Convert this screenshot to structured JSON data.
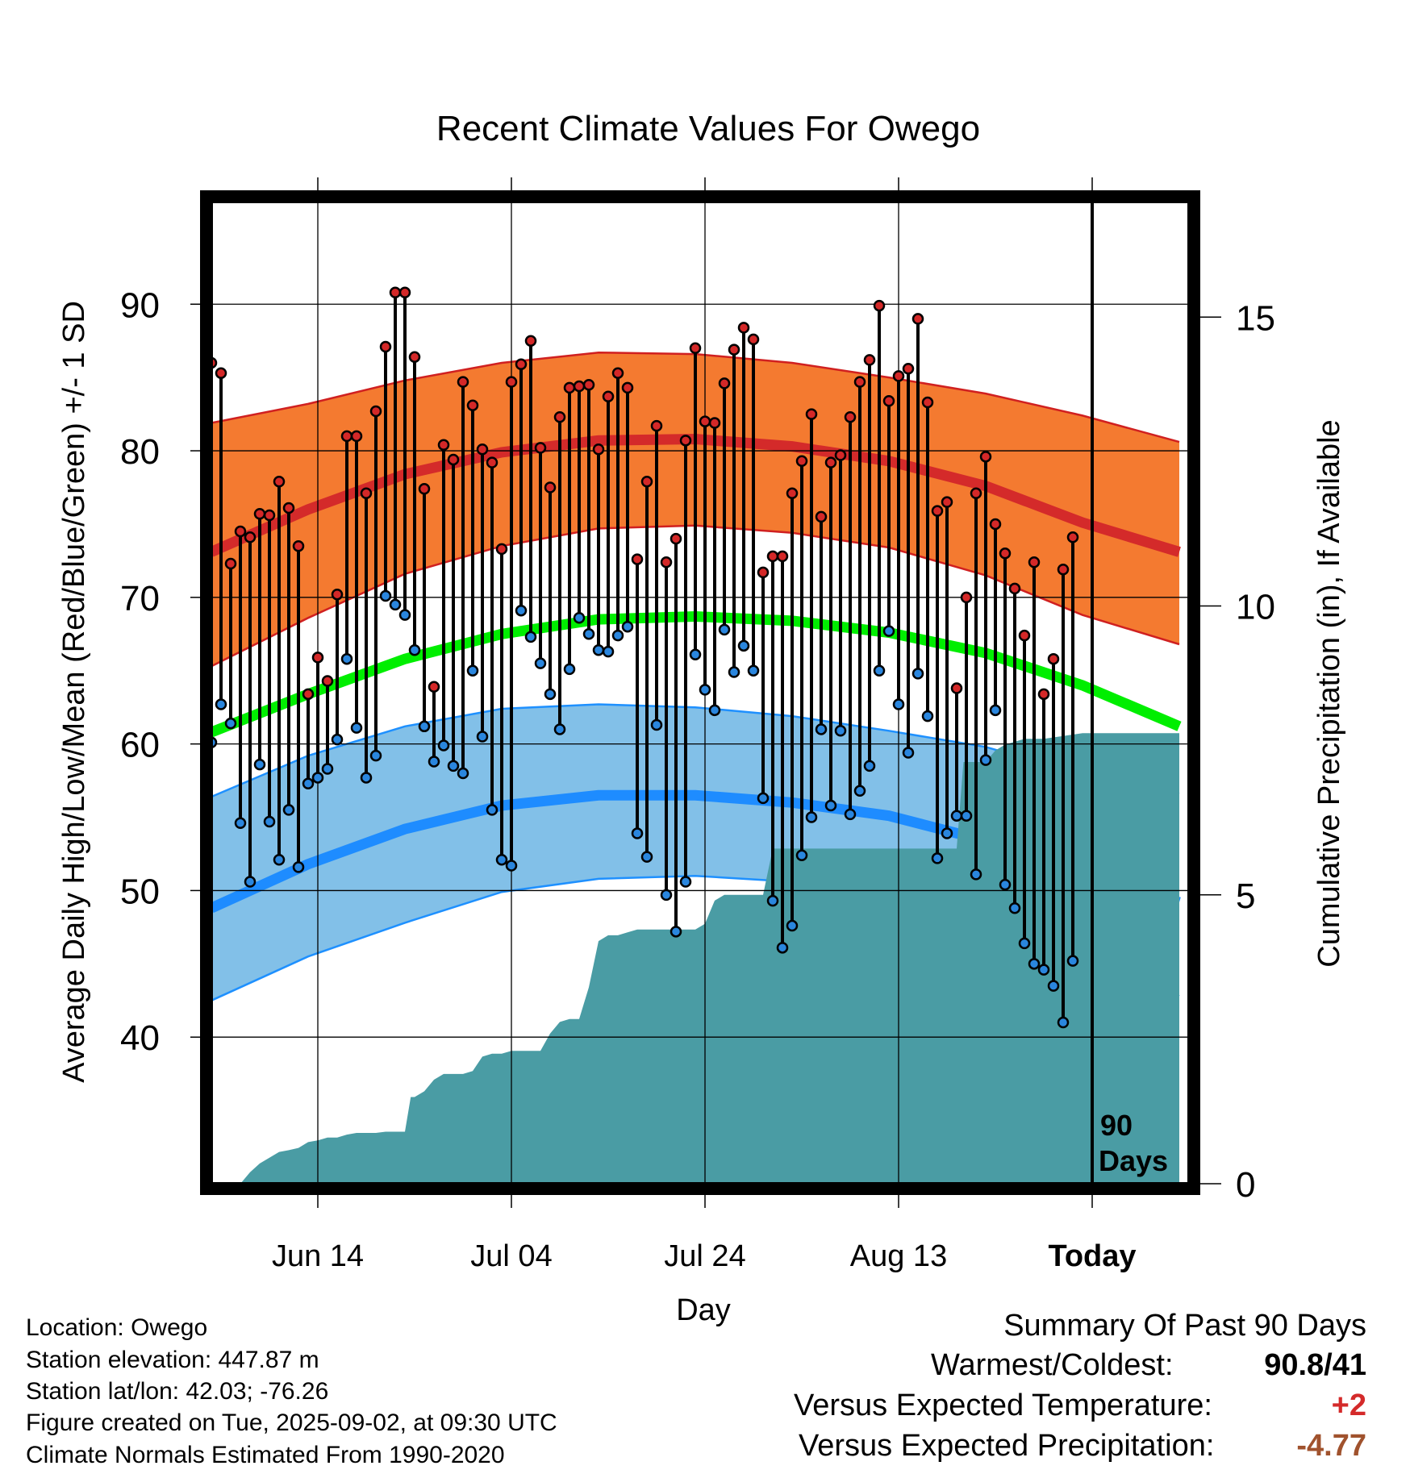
{
  "chart_data": {
    "type": "line",
    "title": "Recent Climate Values For Owego",
    "xlabel": "Day",
    "ylabel": "Average Daily High/Low/Mean (Red/Blue/Green) +/- 1 SD",
    "y2label": "Cumulative Precipitation (in), If Available",
    "x_start_date": "2025-06-03",
    "x_range": [
      "2025-06-03",
      "2025-09-12"
    ],
    "ylim": [
      30,
      97
    ],
    "y_ticks": [
      40,
      50,
      60,
      70,
      80,
      90
    ],
    "y2lim": [
      0,
      17
    ],
    "y2_ticks": [
      0,
      5,
      10,
      15
    ],
    "x_ticks": [
      {
        "date": "2025-06-14",
        "label": "Jun 14"
      },
      {
        "date": "2025-07-04",
        "label": "Jul 04"
      },
      {
        "date": "2025-07-24",
        "label": "Jul 24"
      },
      {
        "date": "2025-08-13",
        "label": "Aug 13"
      },
      {
        "date": "2025-09-02",
        "label": "Today"
      }
    ],
    "grid": true,
    "today_marker": {
      "date": "2025-09-02",
      "label_line1": "90",
      "label_line2": "Days"
    },
    "colors": {
      "high_band": "#f47a30",
      "high_band_edge": "#d02020",
      "high_mean": "#d42a2a",
      "low_band": "#82c0e8",
      "low_band_edge": "#1e90ff",
      "low_mean": "#1e8cff",
      "mean_line": "#00ee00",
      "precip": "#4a9ca4",
      "high_point": "#d42828",
      "low_point": "#2a86de"
    },
    "normals": {
      "high_mean": [
        [
          0,
          73.1
        ],
        [
          10,
          76.0
        ],
        [
          20,
          78.4
        ],
        [
          30,
          79.9
        ],
        [
          40,
          80.7
        ],
        [
          50,
          80.8
        ],
        [
          60,
          80.3
        ],
        [
          70,
          79.3
        ],
        [
          80,
          77.6
        ],
        [
          90,
          75.1
        ],
        [
          100,
          73.1
        ]
      ],
      "high_upper": [
        [
          0,
          81.9
        ],
        [
          10,
          83.2
        ],
        [
          20,
          84.8
        ],
        [
          30,
          86.0
        ],
        [
          40,
          86.7
        ],
        [
          50,
          86.6
        ],
        [
          60,
          86.0
        ],
        [
          70,
          85.0
        ],
        [
          80,
          83.9
        ],
        [
          90,
          82.4
        ],
        [
          100,
          80.6
        ]
      ],
      "high_lower": [
        [
          0,
          65.3
        ],
        [
          10,
          68.6
        ],
        [
          20,
          71.6
        ],
        [
          30,
          73.5
        ],
        [
          40,
          74.7
        ],
        [
          50,
          74.9
        ],
        [
          60,
          74.4
        ],
        [
          70,
          73.4
        ],
        [
          80,
          71.5
        ],
        [
          90,
          68.8
        ],
        [
          100,
          66.8
        ]
      ],
      "mean_line": [
        [
          0,
          60.8
        ],
        [
          10,
          63.4
        ],
        [
          20,
          65.8
        ],
        [
          30,
          67.5
        ],
        [
          40,
          68.5
        ],
        [
          50,
          68.7
        ],
        [
          60,
          68.4
        ],
        [
          70,
          67.6
        ],
        [
          80,
          66.2
        ],
        [
          90,
          64.0
        ],
        [
          100,
          61.2
        ]
      ],
      "low_mean": [
        [
          0,
          48.8
        ],
        [
          10,
          51.8
        ],
        [
          20,
          54.2
        ],
        [
          30,
          55.8
        ],
        [
          40,
          56.5
        ],
        [
          50,
          56.5
        ],
        [
          60,
          56.0
        ],
        [
          70,
          55.1
        ],
        [
          80,
          53.4
        ],
        [
          90,
          51.1
        ],
        [
          100,
          49.2
        ]
      ],
      "low_upper": [
        [
          0,
          56.4
        ],
        [
          10,
          59.2
        ],
        [
          20,
          61.2
        ],
        [
          30,
          62.4
        ],
        [
          40,
          62.7
        ],
        [
          50,
          62.5
        ],
        [
          60,
          61.9
        ],
        [
          70,
          60.9
        ],
        [
          80,
          59.8
        ],
        [
          90,
          57.9
        ],
        [
          100,
          56.6
        ]
      ],
      "low_lower": [
        [
          0,
          42.5
        ],
        [
          10,
          45.5
        ],
        [
          20,
          47.8
        ],
        [
          30,
          49.9
        ],
        [
          40,
          50.8
        ],
        [
          50,
          51.0
        ],
        [
          60,
          50.6
        ],
        [
          70,
          49.8
        ],
        [
          80,
          48.3
        ],
        [
          90,
          45.5
        ],
        [
          100,
          42.8
        ]
      ]
    },
    "daily": {
      "highs": [
        86.0,
        85.3,
        72.3,
        74.5,
        74.1,
        75.7,
        75.6,
        77.9,
        76.1,
        73.5,
        63.4,
        65.9,
        64.3,
        70.2,
        81.0,
        81.0,
        77.1,
        82.7,
        87.1,
        90.8,
        90.8,
        86.4,
        77.4,
        63.9,
        80.4,
        79.4,
        84.7,
        83.1,
        80.1,
        79.2,
        73.3,
        84.7,
        85.9,
        87.5,
        80.2,
        77.5,
        82.3,
        84.3,
        84.4,
        84.5,
        80.1,
        83.7,
        85.3,
        84.3,
        72.6,
        77.9,
        81.7,
        72.4,
        74.0,
        80.7,
        87.0,
        82.0,
        81.9,
        84.6,
        86.9,
        88.4,
        87.6,
        71.7,
        72.8,
        72.8,
        77.1,
        79.3,
        82.5,
        75.5,
        79.2,
        79.7,
        82.3,
        84.7,
        86.2,
        89.9,
        83.4,
        85.1,
        85.6,
        89.0,
        83.3,
        75.9,
        76.5,
        63.8,
        70.0,
        77.1,
        79.6,
        75.0,
        73.0,
        70.6,
        67.4,
        72.4,
        63.4,
        65.8,
        71.9,
        74.1
      ],
      "lows": [
        60.1,
        62.7,
        61.4,
        54.6,
        50.6,
        58.6,
        54.7,
        52.1,
        55.5,
        51.6,
        57.3,
        57.7,
        58.3,
        60.3,
        65.8,
        61.1,
        57.7,
        59.2,
        70.1,
        69.5,
        68.8,
        66.4,
        61.2,
        58.8,
        59.9,
        58.5,
        58.0,
        65.0,
        60.5,
        55.5,
        52.1,
        51.7,
        69.1,
        67.3,
        65.5,
        63.4,
        61.0,
        65.1,
        68.6,
        67.5,
        66.4,
        66.3,
        67.4,
        68.0,
        53.9,
        52.3,
        61.3,
        49.7,
        47.2,
        50.6,
        66.1,
        63.7,
        62.3,
        67.8,
        64.9,
        66.7,
        65.0,
        56.3,
        49.3,
        46.1,
        47.6,
        52.4,
        55.0,
        61.0,
        55.8,
        60.9,
        55.2,
        56.8,
        58.5,
        65.0,
        67.7,
        62.7,
        59.4,
        64.8,
        61.9,
        52.2,
        53.9,
        55.1,
        55.1,
        51.1,
        58.9,
        62.3,
        50.4,
        48.8,
        46.4,
        45.0,
        44.6,
        43.5,
        41.0,
        45.2
      ]
    },
    "precip": [
      [
        0,
        0
      ],
      [
        3,
        0
      ],
      [
        4,
        0.2
      ],
      [
        5,
        0.35
      ],
      [
        6,
        0.45
      ],
      [
        7,
        0.55
      ],
      [
        8,
        0.58
      ],
      [
        9,
        0.62
      ],
      [
        10,
        0.72
      ],
      [
        11,
        0.75
      ],
      [
        12,
        0.8
      ],
      [
        13,
        0.8
      ],
      [
        14,
        0.85
      ],
      [
        15,
        0.88
      ],
      [
        16,
        0.88
      ],
      [
        17,
        0.88
      ],
      [
        18,
        0.9
      ],
      [
        19,
        0.9
      ],
      [
        20,
        0.9
      ],
      [
        20.6,
        1.5
      ],
      [
        21,
        1.5
      ],
      [
        22,
        1.6
      ],
      [
        23,
        1.8
      ],
      [
        24,
        1.9
      ],
      [
        25,
        1.9
      ],
      [
        26,
        1.9
      ],
      [
        27,
        1.95
      ],
      [
        28,
        2.2
      ],
      [
        29,
        2.25
      ],
      [
        30,
        2.25
      ],
      [
        31,
        2.3
      ],
      [
        32,
        2.3
      ],
      [
        33,
        2.3
      ],
      [
        34,
        2.3
      ],
      [
        35,
        2.6
      ],
      [
        36,
        2.8
      ],
      [
        37,
        2.85
      ],
      [
        38,
        2.85
      ],
      [
        39,
        3.4
      ],
      [
        40,
        4.2
      ],
      [
        41,
        4.3
      ],
      [
        42,
        4.3
      ],
      [
        43,
        4.35
      ],
      [
        44,
        4.4
      ],
      [
        45,
        4.4
      ],
      [
        46,
        4.4
      ],
      [
        47,
        4.4
      ],
      [
        48,
        4.4
      ],
      [
        49,
        4.4
      ],
      [
        50,
        4.4
      ],
      [
        51,
        4.5
      ],
      [
        52,
        4.9
      ],
      [
        53,
        5.0
      ],
      [
        54,
        5.0
      ],
      [
        55,
        5.0
      ],
      [
        56,
        5.0
      ],
      [
        57,
        5.0
      ],
      [
        58,
        5.8
      ],
      [
        59,
        5.8
      ],
      [
        60,
        5.8
      ],
      [
        61,
        5.8
      ],
      [
        62,
        5.8
      ],
      [
        63,
        5.8
      ],
      [
        64,
        5.8
      ],
      [
        65,
        5.8
      ],
      [
        66,
        5.8
      ],
      [
        67,
        5.8
      ],
      [
        68,
        5.8
      ],
      [
        69,
        5.8
      ],
      [
        70,
        5.8
      ],
      [
        71,
        5.8
      ],
      [
        72,
        5.8
      ],
      [
        73,
        5.8
      ],
      [
        74,
        5.8
      ],
      [
        75,
        5.8
      ],
      [
        76,
        5.8
      ],
      [
        77,
        5.8
      ],
      [
        77.7,
        7.3
      ],
      [
        78,
        7.3
      ],
      [
        79,
        7.3
      ],
      [
        80,
        7.3
      ],
      [
        81,
        7.5
      ],
      [
        82,
        7.6
      ],
      [
        83,
        7.65
      ],
      [
        84,
        7.7
      ],
      [
        85,
        7.7
      ],
      [
        86,
        7.7
      ],
      [
        90,
        7.8
      ],
      [
        100,
        7.8
      ]
    ]
  },
  "info": {
    "location": "Location: Owego",
    "elevation": "Station elevation: 447.87 m",
    "latlon": "Station lat/lon: 42.03; -76.26",
    "created": "Figure created on Tue, 2025-09-02, at 09:30 UTC",
    "normals": "Climate Normals Estimated From 1990-2020"
  },
  "summary": {
    "title": "Summary Of Past 90 Days",
    "warmest_coldest_label": "Warmest/Coldest:",
    "warmest_coldest_value": "90.8/41",
    "temp_label": "Versus Expected Temperature:",
    "temp_value": "+2",
    "temp_color": "#d42a2a",
    "precip_label": "Versus Expected Precipitation:",
    "precip_value": "-4.77",
    "precip_color": "#a0522d"
  }
}
